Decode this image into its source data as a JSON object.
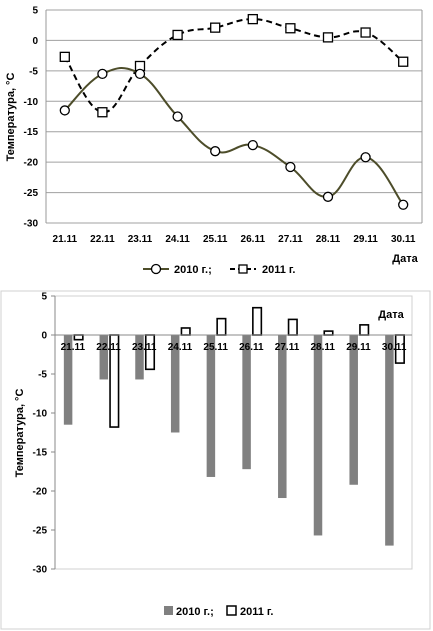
{
  "chart_data": [
    {
      "type": "line",
      "categories": [
        "21.11",
        "22.11",
        "23.11",
        "24.11",
        "25.11",
        "26.11",
        "27.11",
        "28.11",
        "29.11",
        "30.11"
      ],
      "series": [
        {
          "name": "2010 г.;",
          "values": [
            -11.5,
            -5.5,
            -5.5,
            -12.5,
            -18.2,
            -17.2,
            -20.8,
            -25.7,
            -19.2,
            -27.0
          ],
          "color": "#4d4d2a",
          "marker": "circle",
          "style": "solid-smooth"
        },
        {
          "name": "2011 г.",
          "values": [
            -2.7,
            -11.8,
            -4.2,
            0.9,
            2.1,
            3.5,
            2.0,
            0.5,
            1.3,
            -3.5
          ],
          "color": "#000000",
          "marker": "square",
          "style": "dashed-smooth"
        }
      ],
      "xlabel": "Дата",
      "ylabel": "Температура, °С",
      "ylim": [
        -30,
        5
      ],
      "yticks": [
        "5",
        "0",
        "-5",
        "-10",
        "-15",
        "-20",
        "-25",
        "-30"
      ],
      "grid": "horizontal",
      "legend": "bottom"
    },
    {
      "type": "bar",
      "categories": [
        "21.11",
        "22.11",
        "23.11",
        "24.11",
        "25.11",
        "26.11",
        "27.11",
        "28.11",
        "29.11",
        "30.11"
      ],
      "series": [
        {
          "name": "2010 г.;",
          "values": [
            -11.5,
            -5.7,
            -5.7,
            -12.5,
            -18.2,
            -17.2,
            -20.9,
            -25.7,
            -19.2,
            -27.0
          ],
          "color": "#808080"
        },
        {
          "name": "2011 г.",
          "values": [
            -0.6,
            -11.8,
            -4.4,
            0.9,
            2.1,
            3.5,
            2.0,
            0.5,
            1.3,
            -3.6
          ],
          "color": "#ffffff"
        }
      ],
      "xlabel": "Дата",
      "ylabel": "Температура, °С",
      "ylim": [
        -30,
        5
      ],
      "yticks": [
        "5",
        "0",
        "-5",
        "-10",
        "-15",
        "-20",
        "-25",
        "-30"
      ],
      "grid": "none",
      "legend": "bottom"
    }
  ]
}
